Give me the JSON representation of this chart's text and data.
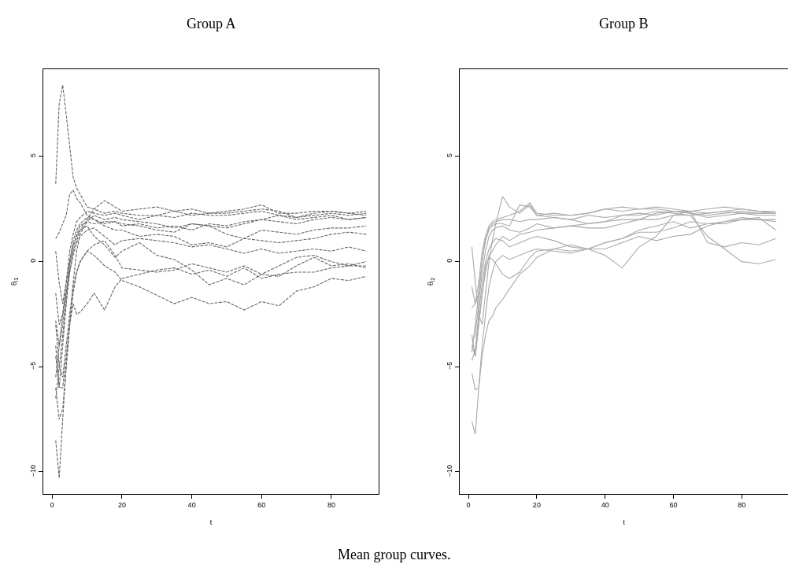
{
  "chart_data": [
    {
      "type": "line",
      "title": "Group A",
      "xlabel": "t",
      "ylabel": "θ$_{i1}$",
      "line_style": "dashed",
      "x": [
        1,
        2,
        3,
        4,
        5,
        6,
        7,
        8,
        10,
        12,
        15,
        18,
        20,
        25,
        30,
        35,
        40,
        45,
        50,
        55,
        60,
        65,
        70,
        75,
        80,
        85,
        90
      ],
      "xlim": [
        -2.56,
        93.56
      ],
      "ylim": [
        -11.05,
        9.15
      ],
      "xticks": [
        0,
        20,
        40,
        60,
        80
      ],
      "yticks": [
        -10,
        -5,
        0,
        5
      ],
      "annotations": [
        "Mean group curves."
      ],
      "series": [
        {
          "color": "#666666",
          "values": [
            3.7,
            7.5,
            8.4,
            7.0,
            5.5,
            4.0,
            3.5,
            3.2,
            2.6,
            2.5,
            2.3,
            2.4,
            2.3,
            2.2,
            2.2,
            2.4,
            2.2,
            2.3,
            2.3,
            2.4,
            2.5,
            2.4,
            2.1,
            2.2,
            2.3,
            2.2,
            2.3
          ]
        },
        {
          "color": "#666666",
          "values": [
            -8.5,
            -10.3,
            -7.5,
            -5,
            -3,
            -1,
            0.5,
            1.3,
            1.9,
            2.2,
            2.0,
            2.1,
            2.0,
            1.9,
            1.8,
            1.6,
            1.8,
            1.7,
            1.6,
            1.8,
            2.0,
            1.9,
            1.8,
            2.0,
            2.1,
            2.0,
            2.1
          ]
        },
        {
          "color": "#666666",
          "values": [
            -3,
            -5,
            -5.5,
            -4,
            -2.5,
            -1.2,
            -0.5,
            0,
            0.5,
            0.3,
            -0.2,
            -0.5,
            -0.9,
            -1.2,
            -1.6,
            -2.0,
            -1.7,
            -2.0,
            -1.9,
            -2.3,
            -1.9,
            -2.1,
            -1.4,
            -1.2,
            -0.8,
            -0.9,
            -0.7
          ]
        },
        {
          "color": "#666666",
          "values": [
            -6.5,
            -5,
            -3.5,
            -2,
            -0.5,
            0.5,
            1.0,
            1.5,
            2.0,
            2.5,
            2.9,
            2.6,
            2.4,
            2.5,
            2.6,
            2.4,
            2.5,
            2.3,
            2.4,
            2.5,
            2.7,
            2.3,
            2.3,
            2.4,
            2.4,
            2.3,
            2.4
          ]
        },
        {
          "color": "#666666",
          "values": [
            1.1,
            1.4,
            1.8,
            2.2,
            3.2,
            3.4,
            3.0,
            2.8,
            2.2,
            2.0,
            1.8,
            1.9,
            1.7,
            1.8,
            1.6,
            1.7,
            1.5,
            1.8,
            1.7,
            1.9,
            2.0,
            2.2,
            2.0,
            2.1,
            2.2,
            2.0,
            2.1
          ]
        },
        {
          "color": "#666666",
          "values": [
            -4,
            -6,
            -6,
            -4.5,
            -3,
            -2,
            -2.5,
            -2.4,
            -2.0,
            -1.5,
            -2.3,
            -1.2,
            -0.8,
            -0.6,
            -0.4,
            -0.3,
            -0.6,
            -0.4,
            -0.7,
            -0.3,
            -0.8,
            -0.6,
            -0.5,
            -0.5,
            -0.3,
            -0.2,
            -0.2
          ]
        },
        {
          "color": "#666666",
          "values": [
            0.5,
            -1,
            -2,
            -1,
            0,
            0.8,
            1.2,
            1.5,
            1.7,
            1.2,
            0.8,
            0.2,
            0.5,
            0.9,
            0.3,
            0.1,
            -0.4,
            -1.1,
            -0.8,
            -1.1,
            -0.6,
            -0.2,
            0.2,
            0.3,
            0.0,
            -0.2,
            0.0
          ]
        },
        {
          "color": "#666666",
          "values": [
            -2.8,
            -4,
            -3,
            -1.5,
            -0.5,
            0.3,
            0.9,
            1.2,
            1.5,
            1.6,
            1.2,
            0.8,
            1.0,
            1.1,
            1.0,
            0.9,
            0.7,
            0.8,
            0.6,
            0.4,
            0.6,
            0.4,
            0.5,
            0.6,
            0.5,
            0.7,
            0.5
          ]
        },
        {
          "color": "#666666",
          "values": [
            -4.5,
            -6,
            -4,
            -2,
            0,
            1.0,
            1.5,
            1.8,
            2.1,
            2.0,
            1.7,
            1.5,
            1.5,
            1.2,
            1.3,
            1.2,
            0.8,
            0.9,
            0.7,
            1.1,
            1.0,
            0.9,
            1.0,
            1.1,
            1.3,
            1.4,
            1.3
          ]
        },
        {
          "color": "#666666",
          "values": [
            -1.5,
            -3,
            -2.5,
            -1.5,
            -0.2,
            0.7,
            1.3,
            1.7,
            1.9,
            1.8,
            1.9,
            1.9,
            1.8,
            1.7,
            1.5,
            1.4,
            1.8,
            1.7,
            1.3,
            1.1,
            1.5,
            1.4,
            1.3,
            1.5,
            1.6,
            1.6,
            1.7
          ]
        },
        {
          "color": "#666666",
          "values": [
            -5.5,
            -4,
            -2.5,
            -1,
            0.5,
            1.3,
            1.9,
            2.1,
            2.4,
            2.3,
            2.2,
            2.3,
            2.2,
            2.0,
            2.2,
            2.1,
            2.3,
            2.2,
            2.2,
            2.3,
            2.4,
            2.2,
            2.1,
            2.3,
            2.4,
            2.3,
            2.2
          ]
        },
        {
          "color": "#666666",
          "values": [
            -6,
            -7.5,
            -7,
            -5,
            -3,
            -1.5,
            -0.5,
            0,
            0.5,
            0.8,
            1.0,
            0.3,
            -0.3,
            -0.4,
            -0.5,
            -0.4,
            -0.1,
            -0.3,
            -0.5,
            -0.2,
            -0.6,
            -0.7,
            -0.2,
            0.2,
            -0.2,
            -0.1,
            -0.3
          ]
        }
      ]
    },
    {
      "type": "line",
      "title": "Group B",
      "xlabel": "t",
      "ylabel": "θ$_{i2}$",
      "line_style": "solid",
      "x": [
        1,
        2,
        3,
        4,
        5,
        6,
        7,
        8,
        10,
        12,
        15,
        18,
        20,
        25,
        30,
        35,
        40,
        45,
        50,
        55,
        60,
        65,
        70,
        75,
        80,
        85,
        90
      ],
      "xlim": [
        -2.56,
        93.56
      ],
      "ylim": [
        -11.05,
        9.15
      ],
      "xticks": [
        0,
        20,
        40,
        60,
        80
      ],
      "yticks": [
        -10,
        -5,
        0,
        5
      ],
      "series": [
        {
          "color": "#aaaaaa",
          "values": [
            -7.6,
            -8.2,
            -6,
            -4.5,
            -3.5,
            -2.8,
            -2.6,
            -2.2,
            -1.8,
            -1.3,
            -0.6,
            -0.2,
            0.2,
            0.6,
            0.5,
            0.6,
            0.9,
            1.1,
            1.5,
            1.7,
            1.9,
            1.6,
            1.8,
            1.9,
            2.1,
            2.0,
            2.0
          ]
        },
        {
          "color": "#aaaaaa",
          "values": [
            0.7,
            -1,
            -2.5,
            -3,
            -1.5,
            0,
            1.0,
            1.8,
            3.1,
            2.6,
            2.3,
            2.7,
            2.2,
            2.3,
            2.2,
            2.3,
            2.5,
            2.4,
            2.5,
            2.5,
            2.4,
            2.4,
            2.3,
            2.4,
            2.5,
            2.4,
            2.4
          ]
        },
        {
          "color": "#aaaaaa",
          "values": [
            -5.3,
            -6.1,
            -6,
            -4,
            -2.5,
            -1.2,
            -0.5,
            0,
            0.3,
            0.1,
            0.3,
            0.5,
            0.6,
            0.5,
            0.4,
            0.6,
            0.3,
            -0.3,
            0.7,
            1.2,
            2.2,
            2.2,
            1.2,
            0.6,
            0.0,
            -0.1,
            0.1
          ]
        },
        {
          "color": "#aaaaaa",
          "values": [
            -2.2,
            -2,
            -1.5,
            0,
            1,
            1.5,
            1.8,
            1.9,
            2.0,
            2.0,
            1.9,
            2.0,
            2.0,
            2.1,
            2.0,
            2.2,
            2.1,
            2.2,
            2.3,
            2.2,
            2.4,
            2.3,
            2.2,
            2.3,
            2.4,
            2.3,
            2.3
          ]
        },
        {
          "color": "#aaaaaa",
          "values": [
            -4,
            -4.5,
            -3,
            -1.5,
            -0.5,
            0.3,
            0.5,
            0.8,
            1.2,
            1.0,
            1.3,
            1.4,
            1.5,
            1.6,
            1.7,
            1.6,
            1.6,
            1.8,
            2.0,
            2.0,
            2.2,
            2.4,
            0.9,
            0.7,
            0.9,
            0.8,
            1.1
          ]
        },
        {
          "color": "#aaaaaa",
          "values": [
            -3.5,
            -4.5,
            -3,
            -1.6,
            -0.2,
            0.2,
            0.1,
            -0.1,
            -0.6,
            -0.8,
            -0.5,
            0.2,
            0.5,
            0.6,
            0.8,
            0.6,
            0.6,
            0.9,
            1.2,
            1.0,
            1.2,
            1.3,
            1.7,
            1.9,
            2.0,
            2.0,
            1.9
          ]
        },
        {
          "color": "#aaaaaa",
          "values": [
            -1.2,
            -2,
            -1,
            0.5,
            1.2,
            1.6,
            1.7,
            1.8,
            1.8,
            1.7,
            2.7,
            2.6,
            2.2,
            2.1,
            2.0,
            1.8,
            1.9,
            2.2,
            2.2,
            2.4,
            2.3,
            2.2,
            2.3,
            2.4,
            2.3,
            2.3,
            2.3
          ]
        },
        {
          "color": "#aaaaaa",
          "values": [
            -4.7,
            -4.2,
            -2.5,
            -1,
            0,
            0.6,
            0.9,
            1.1,
            1.0,
            0.7,
            0.9,
            1.1,
            1.2,
            1.0,
            0.7,
            0.6,
            0.9,
            1.1,
            1.4,
            1.4,
            1.6,
            1.9,
            1.8,
            1.8,
            2.0,
            2.1,
            1.5
          ]
        },
        {
          "color": "#aaaaaa",
          "values": [
            -3.8,
            -3.5,
            -2,
            -0.5,
            0.5,
            1.2,
            1.5,
            1.6,
            1.7,
            1.5,
            1.4,
            1.6,
            1.8,
            1.6,
            1.7,
            1.8,
            1.9,
            2.0,
            2.0,
            2.3,
            2.4,
            2.3,
            2.1,
            2.2,
            2.3,
            2.2,
            2.2
          ]
        },
        {
          "color": "#aaaaaa",
          "values": [
            -4.3,
            -3,
            -1.5,
            0,
            1.2,
            1.7,
            1.9,
            2.0,
            2.1,
            2.2,
            2.4,
            2.8,
            2.3,
            2.2,
            2.2,
            2.3,
            2.5,
            2.6,
            2.5,
            2.6,
            2.5,
            2.4,
            2.5,
            2.6,
            2.5,
            2.4,
            2.3
          ]
        }
      ]
    }
  ]
}
